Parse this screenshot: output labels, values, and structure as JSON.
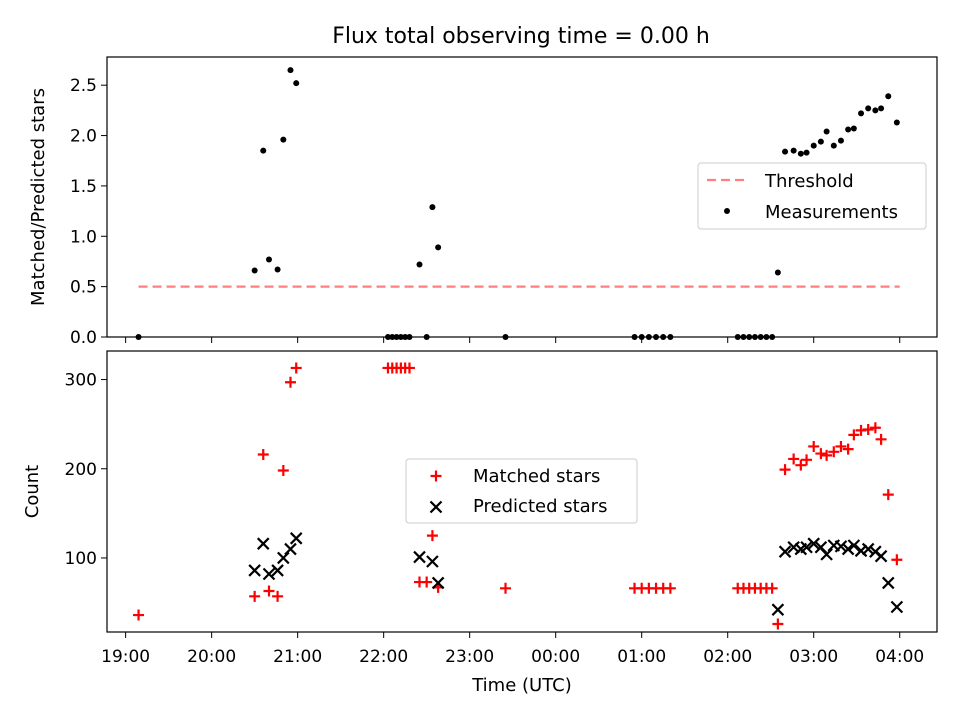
{
  "figure": {
    "title": "Flux total observing time = 0.00 h"
  },
  "chart_data": [
    {
      "type": "scatter",
      "panel": "top",
      "title": "Flux total observing time = 0.00 h",
      "xlabel": "",
      "ylabel": "Matched/Predicted stars",
      "xlim": [
        "18:47",
        "04:26"
      ],
      "ylim": [
        0,
        2.78
      ],
      "yticks": [
        0.0,
        0.5,
        1.0,
        1.5,
        2.0,
        2.5
      ],
      "ytick_labels": [
        "0.0",
        "0.5",
        "1.0",
        "1.5",
        "2.0",
        "2.5"
      ],
      "grid": false,
      "legend_position": "center-right",
      "threshold": {
        "name": "Threshold",
        "value": 0.5,
        "x_start": "19:09",
        "x_end": "04:00",
        "color": "#ff7f7f",
        "style": "dashed"
      },
      "series": [
        {
          "name": "Measurements",
          "marker": "dot",
          "color": "#000000",
          "points": [
            [
              "19:09",
              0.0
            ],
            [
              "20:30",
              0.66
            ],
            [
              "20:36",
              1.85
            ],
            [
              "20:40",
              0.77
            ],
            [
              "20:46",
              0.67
            ],
            [
              "20:50",
              1.96
            ],
            [
              "20:55",
              2.65
            ],
            [
              "20:59",
              2.52
            ],
            [
              "22:03",
              0.0
            ],
            [
              "22:06",
              0.0
            ],
            [
              "22:09",
              0.0
            ],
            [
              "22:12",
              0.0
            ],
            [
              "22:15",
              0.0
            ],
            [
              "22:18",
              0.0
            ],
            [
              "22:25",
              0.72
            ],
            [
              "22:30",
              0.0
            ],
            [
              "22:34",
              1.29
            ],
            [
              "22:38",
              0.89
            ],
            [
              "23:25",
              0.0
            ],
            [
              "00:55",
              0.0
            ],
            [
              "01:00",
              0.0
            ],
            [
              "01:05",
              0.0
            ],
            [
              "01:10",
              0.0
            ],
            [
              "01:15",
              0.0
            ],
            [
              "01:20",
              0.0
            ],
            [
              "02:07",
              0.0
            ],
            [
              "02:11",
              0.0
            ],
            [
              "02:15",
              0.0
            ],
            [
              "02:19",
              0.0
            ],
            [
              "02:23",
              0.0
            ],
            [
              "02:27",
              0.0
            ],
            [
              "02:31",
              0.0
            ],
            [
              "02:35",
              0.64
            ],
            [
              "02:40",
              1.84
            ],
            [
              "02:46",
              1.85
            ],
            [
              "02:51",
              1.82
            ],
            [
              "02:55",
              1.83
            ],
            [
              "03:00",
              1.9
            ],
            [
              "03:05",
              1.94
            ],
            [
              "03:09",
              2.04
            ],
            [
              "03:14",
              1.9
            ],
            [
              "03:19",
              1.95
            ],
            [
              "03:24",
              2.06
            ],
            [
              "03:28",
              2.07
            ],
            [
              "03:33",
              2.22
            ],
            [
              "03:38",
              2.27
            ],
            [
              "03:43",
              2.25
            ],
            [
              "03:47",
              2.27
            ],
            [
              "03:52",
              2.39
            ],
            [
              "03:58",
              2.13
            ]
          ]
        }
      ]
    },
    {
      "type": "scatter",
      "panel": "bottom",
      "title": "",
      "xlabel": "Time (UTC)",
      "ylabel": "Count",
      "xlim": [
        "18:47",
        "04:26"
      ],
      "ylim": [
        17,
        332
      ],
      "yticks": [
        100,
        200,
        300
      ],
      "ytick_labels": [
        "100",
        "200",
        "300"
      ],
      "xticks": [
        "19:00",
        "20:00",
        "21:00",
        "22:00",
        "23:00",
        "00:00",
        "01:00",
        "02:00",
        "03:00",
        "04:00"
      ],
      "xtick_labels": [
        "19:00",
        "20:00",
        "21:00",
        "22:00",
        "23:00",
        "00:00",
        "01:00",
        "02:00",
        "03:00",
        "04:00"
      ],
      "grid": false,
      "legend_position": "center",
      "series": [
        {
          "name": "Matched stars",
          "marker": "plus",
          "color": "#ff0000",
          "points": [
            [
              "19:09",
              36
            ],
            [
              "20:30",
              57
            ],
            [
              "20:36",
              216
            ],
            [
              "20:40",
              63
            ],
            [
              "20:46",
              57
            ],
            [
              "20:50",
              198
            ],
            [
              "20:55",
              297
            ],
            [
              "20:59",
              313
            ],
            [
              "22:03",
              313
            ],
            [
              "22:06",
              313
            ],
            [
              "22:09",
              313
            ],
            [
              "22:12",
              313
            ],
            [
              "22:15",
              313
            ],
            [
              "22:18",
              313
            ],
            [
              "22:25",
              73
            ],
            [
              "22:30",
              73
            ],
            [
              "22:34",
              125
            ],
            [
              "22:38",
              67
            ],
            [
              "23:25",
              66
            ],
            [
              "00:55",
              66
            ],
            [
              "01:00",
              66
            ],
            [
              "01:05",
              66
            ],
            [
              "01:10",
              66
            ],
            [
              "01:15",
              66
            ],
            [
              "01:20",
              66
            ],
            [
              "02:07",
              66
            ],
            [
              "02:11",
              66
            ],
            [
              "02:15",
              66
            ],
            [
              "02:19",
              66
            ],
            [
              "02:23",
              66
            ],
            [
              "02:27",
              66
            ],
            [
              "02:31",
              66
            ],
            [
              "02:35",
              26
            ],
            [
              "02:40",
              199
            ],
            [
              "02:46",
              211
            ],
            [
              "02:51",
              204
            ],
            [
              "02:55",
              210
            ],
            [
              "03:00",
              225
            ],
            [
              "03:05",
              217
            ],
            [
              "03:09",
              215
            ],
            [
              "03:14",
              219
            ],
            [
              "03:19",
              225
            ],
            [
              "03:24",
              222
            ],
            [
              "03:28",
              238
            ],
            [
              "03:33",
              243
            ],
            [
              "03:38",
              244
            ],
            [
              "03:43",
              246
            ],
            [
              "03:47",
              233
            ],
            [
              "03:52",
              171
            ],
            [
              "03:58",
              98
            ]
          ]
        },
        {
          "name": "Predicted stars",
          "marker": "x",
          "color": "#000000",
          "points": [
            [
              "20:30",
              86
            ],
            [
              "20:36",
              116
            ],
            [
              "20:40",
              82
            ],
            [
              "20:46",
              86
            ],
            [
              "20:50",
              100
            ],
            [
              "20:55",
              110
            ],
            [
              "20:59",
              122
            ],
            [
              "22:25",
              101
            ],
            [
              "22:34",
              96
            ],
            [
              "22:38",
              72
            ],
            [
              "02:35",
              42
            ],
            [
              "02:40",
              107
            ],
            [
              "02:46",
              112
            ],
            [
              "02:51",
              110
            ],
            [
              "02:55",
              112
            ],
            [
              "03:00",
              116
            ],
            [
              "03:05",
              112
            ],
            [
              "03:09",
              104
            ],
            [
              "03:14",
              114
            ],
            [
              "03:19",
              113
            ],
            [
              "03:24",
              110
            ],
            [
              "03:28",
              114
            ],
            [
              "03:33",
              108
            ],
            [
              "03:38",
              110
            ],
            [
              "03:43",
              107
            ],
            [
              "03:47",
              102
            ],
            [
              "03:52",
              72
            ],
            [
              "03:58",
              45
            ]
          ]
        }
      ]
    }
  ]
}
